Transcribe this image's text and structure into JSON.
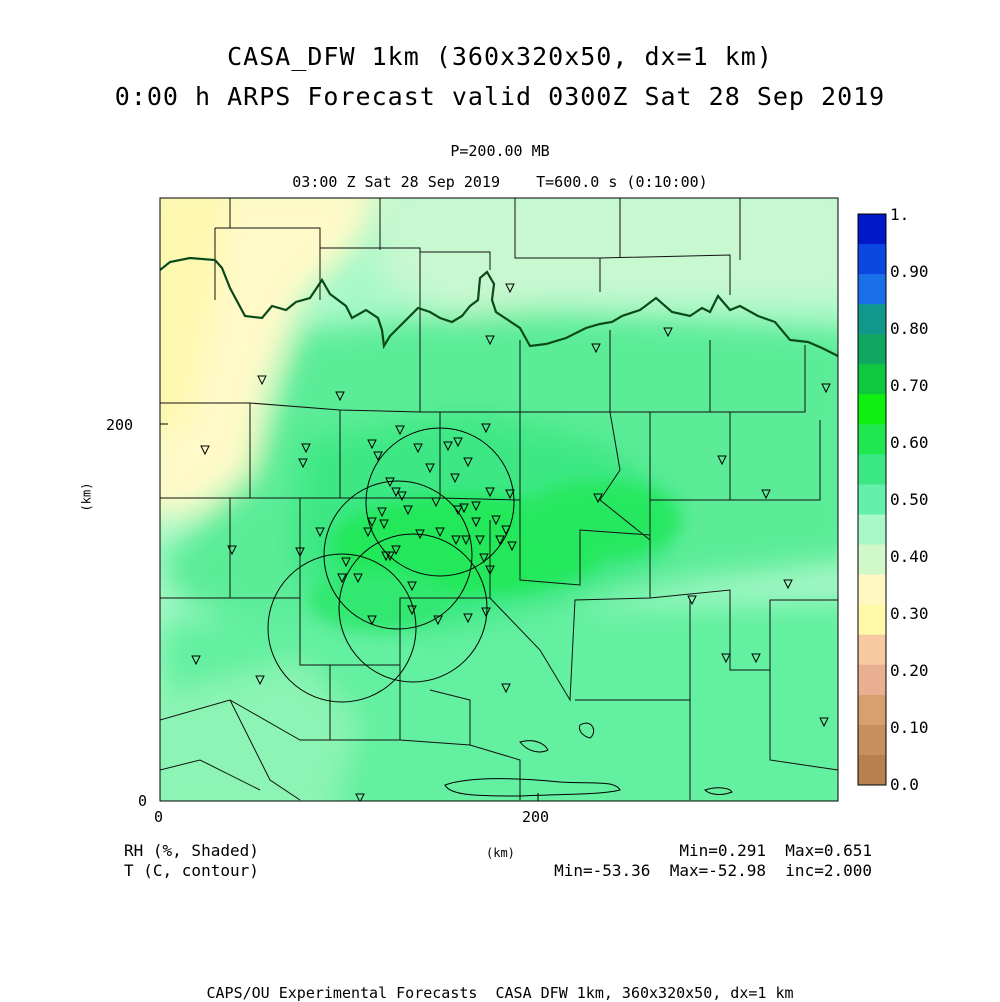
{
  "header": {
    "title_line1": "CASA_DFW 1km (360x320x50, dx=1 km)",
    "title_line2": "0:00 h ARPS Forecast valid 0300Z Sat 28 Sep 2019",
    "pressure_level": "P=200.00 MB",
    "time_line": "03:00 Z Sat 28 Sep 2019    T=600.0 s (0:10:00)"
  },
  "axes": {
    "y_unit": "(km)",
    "x_unit": "(km)",
    "x_ticks": [
      "0",
      "200"
    ],
    "y_ticks": [
      "0",
      "200"
    ],
    "x_range_km": [
      0,
      360
    ],
    "y_range_km": [
      0,
      320
    ]
  },
  "colorbar": {
    "labels": [
      "1.",
      "0.90",
      "0.80",
      "0.70",
      "0.60",
      "0.50",
      "0.40",
      "0.30",
      "0.20",
      "0.10",
      "0.0"
    ],
    "colors": [
      "#0018c8",
      "#0a48e0",
      "#1a70e8",
      "#10988c",
      "#10a860",
      "#10c840",
      "#10f010",
      "#20e850",
      "#3ce884",
      "#64f0a8",
      "#a8f8c8",
      "#d0f8c8",
      "#fff8c0",
      "#fffaa8",
      "#f8c8a0",
      "#e8b090",
      "#d8a070",
      "#c89060",
      "#b88050"
    ]
  },
  "legend": {
    "rh_label": "RH (%, Shaded)",
    "t_label": "T (C, contour)",
    "rh_stats": "Min=0.291  Max=0.651",
    "t_stats": "Min=-53.36  Max=-52.98  inc=2.000"
  },
  "footer": {
    "credit": "CAPS/OU Experimental Forecasts  CASA DFW 1km, 360x320x50, dx=1 km"
  }
}
